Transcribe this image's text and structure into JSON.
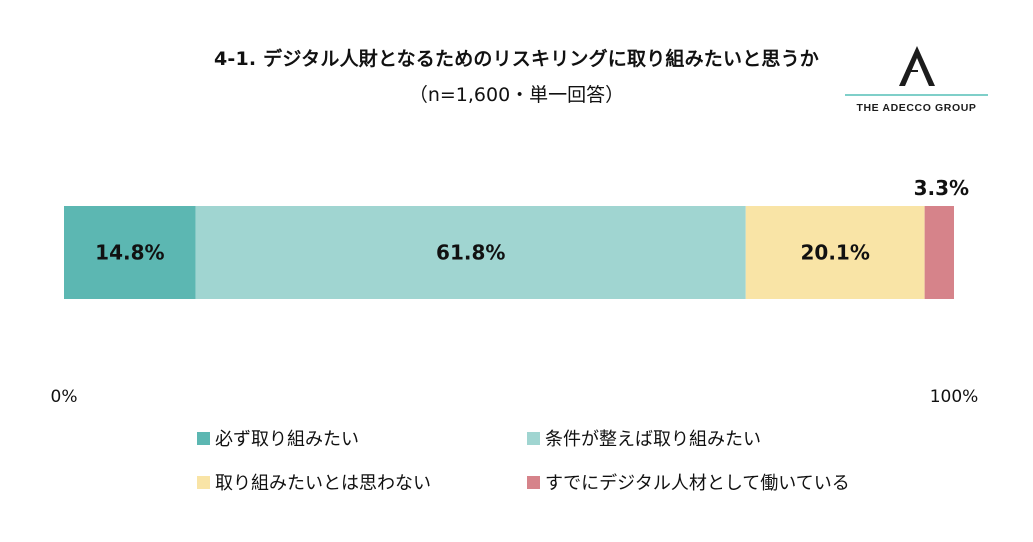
{
  "header": {
    "title": "4-1. デジタル人財となるためのリスキリングに取り組みたいと思うか",
    "subtitle": "（n=1,600・単一回答）"
  },
  "logo": {
    "text": "THE ADECCO GROUP",
    "accent_color": "#7fcfc9"
  },
  "chart_data": {
    "type": "bar",
    "orientation": "horizontal-stacked-100",
    "title": "4-1. デジタル人財となるためのリスキリングに取り組みたいと思うか",
    "subtitle": "（n=1,600・単一回答）",
    "xlim": [
      0,
      100
    ],
    "axis_labels": {
      "min": "0%",
      "max": "100%"
    },
    "grid": false,
    "legend_position": "bottom",
    "series": [
      {
        "name": "必ず取り組みたい",
        "value": 14.8,
        "label": "14.8%",
        "color": "#5cb7b2"
      },
      {
        "name": "条件が整えば取り組みたい",
        "value": 61.8,
        "label": "61.8%",
        "color": "#a0d5d1"
      },
      {
        "name": "取り組みたいとは思わない",
        "value": 20.1,
        "label": "20.1%",
        "color": "#f9e4a6"
      },
      {
        "name": "すでにデジタル人材として働いている",
        "value": 3.3,
        "label": "3.3%",
        "color": "#d6838a"
      }
    ]
  }
}
